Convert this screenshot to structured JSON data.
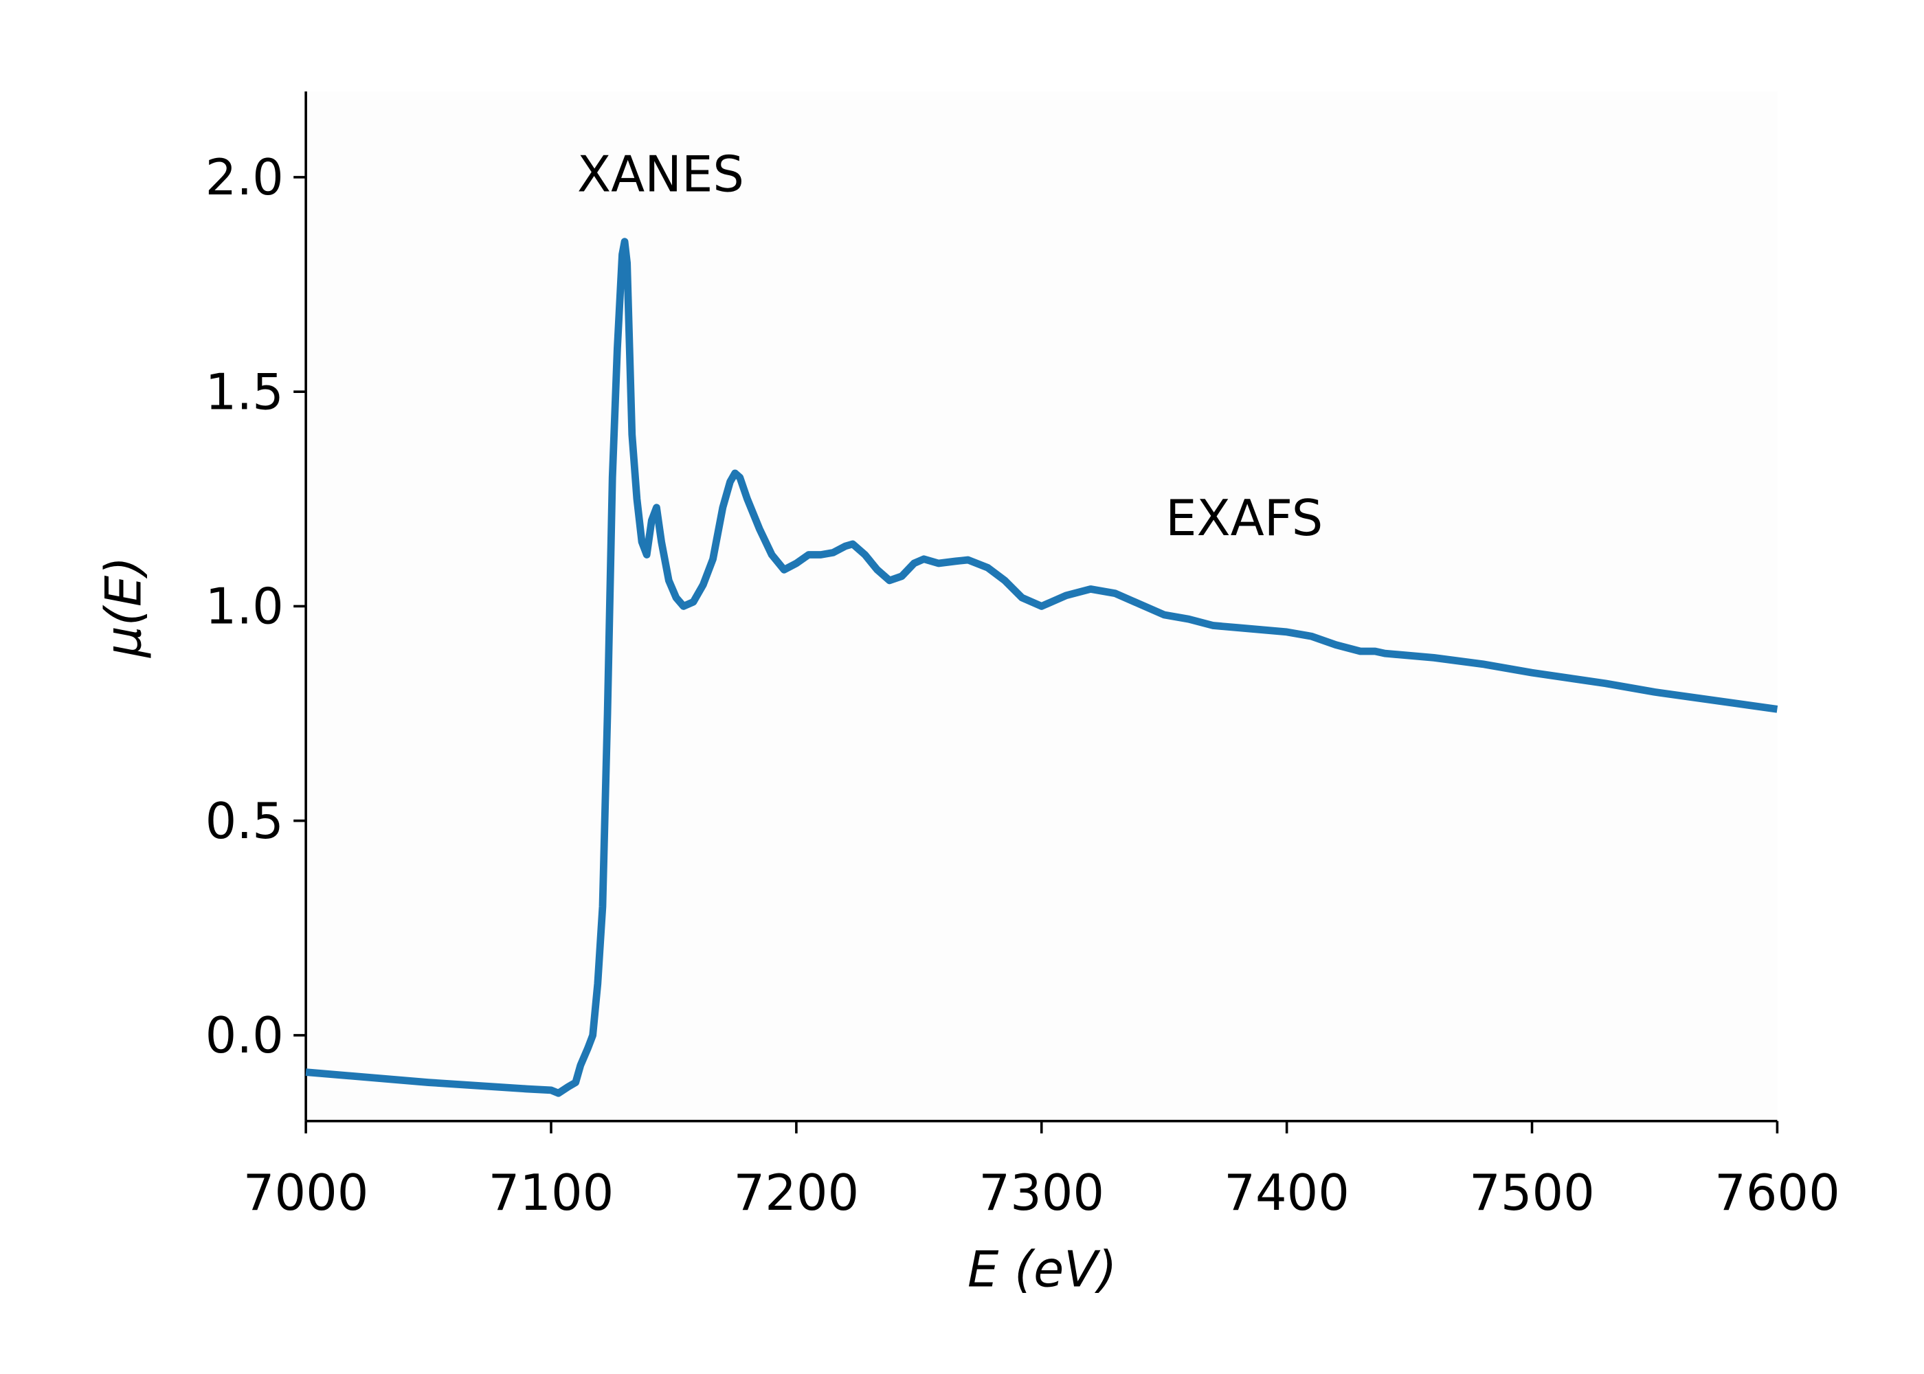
{
  "chart_data": {
    "type": "line",
    "xlabel": "E (eV)",
    "ylabel": "μ(E)",
    "annotations": [
      "XANES",
      "EXAFS"
    ],
    "x": [
      7000,
      7050,
      7090,
      7100,
      7103,
      7107,
      7110,
      7112,
      7115,
      7117,
      7119,
      7121,
      7123,
      7125,
      7127,
      7129,
      7130,
      7131,
      7133,
      7135,
      7137,
      7139,
      7141,
      7143,
      7145,
      7148,
      7151,
      7154,
      7158,
      7162,
      7166,
      7170,
      7173,
      7175,
      7177,
      7180,
      7185,
      7190,
      7195,
      7200,
      7205,
      7210,
      7215,
      7220,
      7223,
      7228,
      7233,
      7238,
      7243,
      7248,
      7252,
      7258,
      7265,
      7270,
      7278,
      7285,
      7292,
      7300,
      7310,
      7320,
      7330,
      7340,
      7350,
      7360,
      7370,
      7380,
      7390,
      7400,
      7410,
      7420,
      7430,
      7436,
      7440,
      7460,
      7480,
      7500,
      7530,
      7550,
      7575,
      7600
    ],
    "series": [
      {
        "color": "#1f77b4",
        "values": [
          -0.086,
          -0.11,
          -0.125,
          -0.128,
          -0.135,
          -0.12,
          -0.11,
          -0.07,
          -0.03,
          0.0,
          0.12,
          0.3,
          0.75,
          1.3,
          1.6,
          1.82,
          1.85,
          1.8,
          1.4,
          1.25,
          1.15,
          1.12,
          1.2,
          1.23,
          1.15,
          1.06,
          1.02,
          1.0,
          1.01,
          1.05,
          1.11,
          1.23,
          1.29,
          1.31,
          1.3,
          1.25,
          1.18,
          1.12,
          1.085,
          1.1,
          1.12,
          1.12,
          1.125,
          1.14,
          1.145,
          1.12,
          1.085,
          1.06,
          1.07,
          1.1,
          1.11,
          1.1,
          1.105,
          1.108,
          1.09,
          1.06,
          1.02,
          1.0,
          1.025,
          1.04,
          1.03,
          1.005,
          0.98,
          0.97,
          0.955,
          0.95,
          0.945,
          0.94,
          0.93,
          0.91,
          0.895,
          0.895,
          0.89,
          0.88,
          0.865,
          0.845,
          0.82,
          0.8,
          0.78,
          0.76
        ]
      }
    ],
    "xlim": [
      7000,
      7600
    ],
    "xticks": [
      7000,
      7100,
      7200,
      7300,
      7400,
      7500,
      7600
    ],
    "ylim": [
      -0.2,
      2.2
    ],
    "yticks": [
      {
        "value": 0,
        "label": "0.0"
      },
      0.5,
      {
        "value": 1,
        "label": "1.0"
      },
      1.5,
      {
        "value": 2,
        "label": "2.0"
      }
    ]
  }
}
